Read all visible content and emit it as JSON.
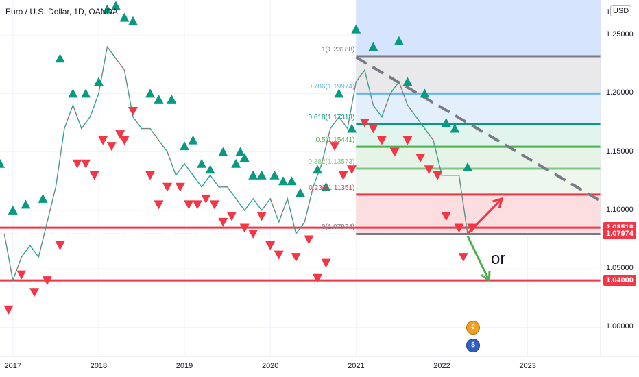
{
  "header": {
    "title": "Euro / U.S. Dollar, 1D, OANDA",
    "currency": "USD"
  },
  "chart_data": {
    "type": "line",
    "title": "Euro / U.S. Dollar, 1D, OANDA",
    "xlabel": "",
    "ylabel": "",
    "x_range": [
      2016.85,
      2023.85
    ],
    "ylim": [
      0.975,
      1.28
    ],
    "x_ticks": [
      2017,
      2018,
      2019,
      2020,
      2021,
      2022,
      2023
    ],
    "x_tick_labels": [
      "2017",
      "2018",
      "2019",
      "2020",
      "2021",
      "2022",
      "2023"
    ],
    "y_ticks": [
      1.0,
      1.05,
      1.1,
      1.15,
      1.2,
      1.25
    ],
    "y_tick_labels": [
      "1.00000",
      "1.05000",
      "1.10000",
      "1.15000",
      "1.20000",
      "1.25000"
    ],
    "y_top_partial_label": "1",
    "series": [
      {
        "x": [
          2016.9,
          2017.0,
          2017.1,
          2017.2,
          2017.3,
          2017.4,
          2017.5,
          2017.6,
          2017.7,
          2017.8,
          2017.9,
          2018.0,
          2018.1,
          2018.2,
          2018.3,
          2018.4,
          2018.5,
          2018.6,
          2018.7,
          2018.8,
          2018.9,
          2019.0,
          2019.1,
          2019.2,
          2019.3,
          2019.4,
          2019.5,
          2019.6,
          2019.7,
          2019.8,
          2019.9,
          2020.0,
          2020.1,
          2020.2,
          2020.3,
          2020.4,
          2020.5,
          2020.6,
          2020.7,
          2020.8,
          2020.9,
          2021.0,
          2021.1,
          2021.2,
          2021.3,
          2021.4,
          2021.5,
          2021.6,
          2021.7,
          2021.8,
          2021.9,
          2022.0,
          2022.1,
          2022.2,
          2022.3
        ],
        "values": [
          1.08,
          1.04,
          1.06,
          1.07,
          1.06,
          1.09,
          1.12,
          1.17,
          1.19,
          1.17,
          1.18,
          1.2,
          1.24,
          1.23,
          1.22,
          1.18,
          1.17,
          1.17,
          1.16,
          1.15,
          1.13,
          1.14,
          1.13,
          1.12,
          1.13,
          1.12,
          1.12,
          1.11,
          1.1,
          1.11,
          1.1,
          1.11,
          1.09,
          1.11,
          1.08,
          1.09,
          1.12,
          1.14,
          1.17,
          1.18,
          1.17,
          1.21,
          1.22,
          1.19,
          1.18,
          1.2,
          1.21,
          1.19,
          1.18,
          1.17,
          1.16,
          1.13,
          1.13,
          1.13,
          1.08
        ]
      }
    ],
    "signals_up": [
      [
        2016.85,
        1.14
      ],
      [
        2017.0,
        1.1
      ],
      [
        2017.15,
        1.105
      ],
      [
        2017.35,
        1.11
      ],
      [
        2017.55,
        1.23
      ],
      [
        2017.7,
        1.2
      ],
      [
        2017.85,
        1.2
      ],
      [
        2018.0,
        1.21
      ],
      [
        2018.1,
        1.272
      ],
      [
        2018.2,
        1.275
      ],
      [
        2018.3,
        1.265
      ],
      [
        2018.4,
        1.262
      ],
      [
        2018.6,
        1.2
      ],
      [
        2018.7,
        1.195
      ],
      [
        2018.85,
        1.195
      ],
      [
        2019.0,
        1.155
      ],
      [
        2019.1,
        1.16
      ],
      [
        2019.2,
        1.14
      ],
      [
        2019.3,
        1.135
      ],
      [
        2019.45,
        1.15
      ],
      [
        2019.6,
        1.14
      ],
      [
        2019.65,
        1.15
      ],
      [
        2019.7,
        1.145
      ],
      [
        2019.8,
        1.13
      ],
      [
        2019.9,
        1.13
      ],
      [
        2020.05,
        1.13
      ],
      [
        2020.15,
        1.125
      ],
      [
        2020.25,
        1.125
      ],
      [
        2020.35,
        1.115
      ],
      [
        2020.55,
        1.135
      ],
      [
        2020.65,
        1.12
      ],
      [
        2020.8,
        1.2
      ],
      [
        2020.95,
        1.17
      ],
      [
        2021.0,
        1.255
      ],
      [
        2021.2,
        1.24
      ],
      [
        2021.5,
        1.245
      ],
      [
        2021.6,
        1.21
      ],
      [
        2021.8,
        1.2
      ],
      [
        2022.05,
        1.175
      ],
      [
        2022.15,
        1.17
      ],
      [
        2022.3,
        1.137
      ]
    ],
    "signals_down": [
      [
        2016.95,
        1.015
      ],
      [
        2017.1,
        1.045
      ],
      [
        2017.25,
        1.03
      ],
      [
        2017.4,
        1.04
      ],
      [
        2017.55,
        1.07
      ],
      [
        2017.75,
        1.14
      ],
      [
        2017.85,
        1.14
      ],
      [
        2017.95,
        1.13
      ],
      [
        2018.05,
        1.16
      ],
      [
        2018.15,
        1.155
      ],
      [
        2018.25,
        1.165
      ],
      [
        2018.3,
        1.16
      ],
      [
        2018.4,
        1.185
      ],
      [
        2018.6,
        1.13
      ],
      [
        2018.7,
        1.105
      ],
      [
        2018.8,
        1.12
      ],
      [
        2018.95,
        1.12
      ],
      [
        2019.05,
        1.105
      ],
      [
        2019.15,
        1.105
      ],
      [
        2019.25,
        1.11
      ],
      [
        2019.35,
        1.105
      ],
      [
        2019.45,
        1.09
      ],
      [
        2019.55,
        1.095
      ],
      [
        2019.7,
        1.085
      ],
      [
        2019.8,
        1.08
      ],
      [
        2019.9,
        1.095
      ],
      [
        2020.0,
        1.07
      ],
      [
        2020.1,
        1.062
      ],
      [
        2020.3,
        1.06
      ],
      [
        2020.45,
        1.075
      ],
      [
        2020.55,
        1.042
      ],
      [
        2020.65,
        1.055
      ],
      [
        2020.75,
        1.155
      ],
      [
        2020.85,
        1.13
      ],
      [
        2020.95,
        1.135
      ],
      [
        2021.1,
        1.175
      ],
      [
        2021.2,
        1.17
      ],
      [
        2021.3,
        1.16
      ],
      [
        2021.45,
        1.15
      ],
      [
        2021.6,
        1.16
      ],
      [
        2021.75,
        1.145
      ],
      [
        2021.85,
        1.135
      ],
      [
        2021.95,
        1.13
      ],
      [
        2022.05,
        1.095
      ],
      [
        2022.2,
        1.085
      ],
      [
        2022.35,
        1.085
      ],
      [
        2022.25,
        1.06
      ]
    ],
    "fib_levels": [
      {
        "label": "1(1.23188)",
        "value": 1.23188,
        "color": "#787b86"
      },
      {
        "label": "0.786(1.19974)",
        "value": 1.2,
        "color": "#64b5f6"
      },
      {
        "label": "0.618(1.17313)",
        "value": 1.174,
        "color": "#089981"
      },
      {
        "label": "0.5(1.15441)",
        "value": 1.1544,
        "color": "#4caf50"
      },
      {
        "label": "0.382(1.13573)",
        "value": 1.1357,
        "color": "#81c784"
      },
      {
        "label": "0.236(1.11351)",
        "value": 1.1135,
        "color": "#f23645"
      },
      {
        "label": "0(1.07974)",
        "value": 1.0797,
        "color": "#787b86"
      }
    ],
    "horizontal_lines": [
      1.08518,
      1.04
    ],
    "price_tags": [
      {
        "label": "1.08518",
        "value": 1.08518,
        "color": "#f23645"
      },
      {
        "label": "1.07974",
        "value": 1.07974,
        "color": "#f23645"
      },
      {
        "label": "1.04000",
        "value": 1.04,
        "color": "#f23645"
      }
    ],
    "trendline": {
      "from": [
        2021.0,
        1.231
      ],
      "to": [
        2023.85,
        1.108
      ],
      "color": "#787b86"
    },
    "arrow_up": {
      "from": [
        2022.3,
        1.08
      ],
      "to": [
        2022.7,
        1.11
      ],
      "color": "#f23645"
    },
    "arrow_down": {
      "from": [
        2022.3,
        1.078
      ],
      "to": [
        2022.55,
        1.04
      ],
      "color": "#4caf50"
    },
    "projection_zone": {
      "x0": 2021.0,
      "x1": 2023.85,
      "y0": 1.0797,
      "y1": 1.28
    },
    "annotation_text": "or"
  },
  "events": [
    {
      "name": "eu-event-icon",
      "symbol": "€"
    },
    {
      "name": "us-event-icon",
      "symbol": "$"
    }
  ]
}
